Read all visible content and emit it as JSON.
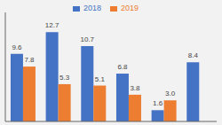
{
  "chart_data": {
    "type": "bar",
    "categories": [
      null,
      null,
      null,
      null,
      null,
      null
    ],
    "series": [
      {
        "name": "2018",
        "color": "#4472c4",
        "values": [
          9.6,
          12.7,
          10.7,
          6.8,
          1.6,
          8.4
        ]
      },
      {
        "name": "2019",
        "color": "#ed7d31",
        "values": [
          7.8,
          5.3,
          5.1,
          3.8,
          3.0,
          null
        ],
        "value_labels": [
          "7.8",
          "5.3",
          "5.1",
          "3.8",
          "3.0",
          null
        ]
      }
    ],
    "ylim": [
      0,
      15.5
    ],
    "grid": false,
    "legend": "top",
    "data_labels": true,
    "tick_labels": false
  }
}
